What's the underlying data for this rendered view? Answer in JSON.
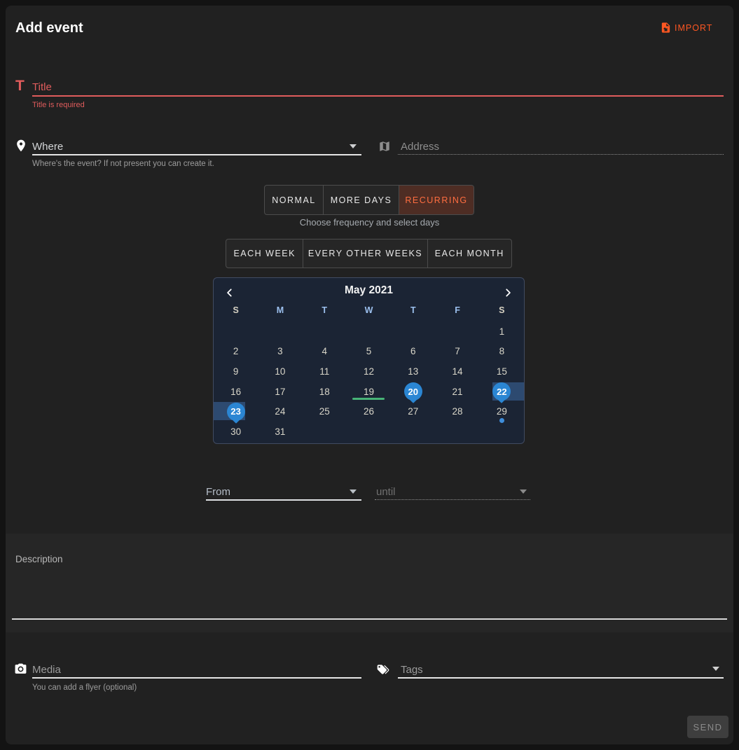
{
  "header": {
    "title": "Add event",
    "import_label": "IMPORT",
    "import_icon": "file-import-icon"
  },
  "title_field": {
    "icon": "format-title-icon",
    "icon_glyph": "T",
    "placeholder": "Title",
    "error": "Title is required"
  },
  "where_field": {
    "icon": "map-marker-icon",
    "placeholder": "Where",
    "helper": "Where's the event? If not present you can create it."
  },
  "address_field": {
    "icon": "map-icon",
    "placeholder": "Address"
  },
  "recurrence_tabs": {
    "items": [
      {
        "label": "NORMAL",
        "selected": false
      },
      {
        "label": "MORE DAYS",
        "selected": false
      },
      {
        "label": "RECURRING",
        "selected": true
      }
    ],
    "caption": "Choose frequency and select days"
  },
  "frequency_tabs": {
    "items": [
      "EACH WEEK",
      "EVERY OTHER WEEKS",
      "EACH MONTH"
    ]
  },
  "calendar": {
    "month_title": "May 2021",
    "prev_icon": "chevron-left-icon",
    "next_icon": "chevron-right-icon",
    "weekdays": [
      "S",
      "M",
      "T",
      "W",
      "T",
      "F",
      "S"
    ],
    "weeks": [
      [
        "",
        "",
        "",
        "",
        "",
        "",
        "1"
      ],
      [
        "2",
        "3",
        "4",
        "5",
        "6",
        "7",
        "8"
      ],
      [
        "9",
        "10",
        "11",
        "12",
        "13",
        "14",
        "15"
      ],
      [
        "16",
        "17",
        "18",
        "19",
        "20",
        "21",
        "22"
      ],
      [
        "23",
        "24",
        "25",
        "26",
        "27",
        "28",
        "29"
      ],
      [
        "30",
        "31",
        "",
        "",
        "",
        "",
        ""
      ]
    ],
    "selected_balloon_days": [
      "20",
      "22",
      "23"
    ],
    "range_band_right_day": "22",
    "range_band_left_day": "23",
    "green_underline_day": "19",
    "dot_day": "29"
  },
  "time_fields": {
    "from_label": "From",
    "until_label": "until"
  },
  "description_field": {
    "label": "Description"
  },
  "media_field": {
    "icon": "camera-icon",
    "placeholder": "Media",
    "helper": "You can add a flyer (optional)"
  },
  "tags_field": {
    "icon": "tags-icon",
    "placeholder": "Tags"
  },
  "footer": {
    "send_label": "SEND"
  },
  "colors": {
    "accent_orange": "#ff5722",
    "recurring_tab_bg": "#4e2d24",
    "recurring_tab_text": "#ff6e40",
    "error_red": "#e05c5c",
    "balloon_blue": "#2b86d3",
    "range_band_blue": "#2d4a70",
    "green_underline": "#47b377",
    "dot_blue": "#3f8edb",
    "calendar_bg": "#1b2434"
  }
}
